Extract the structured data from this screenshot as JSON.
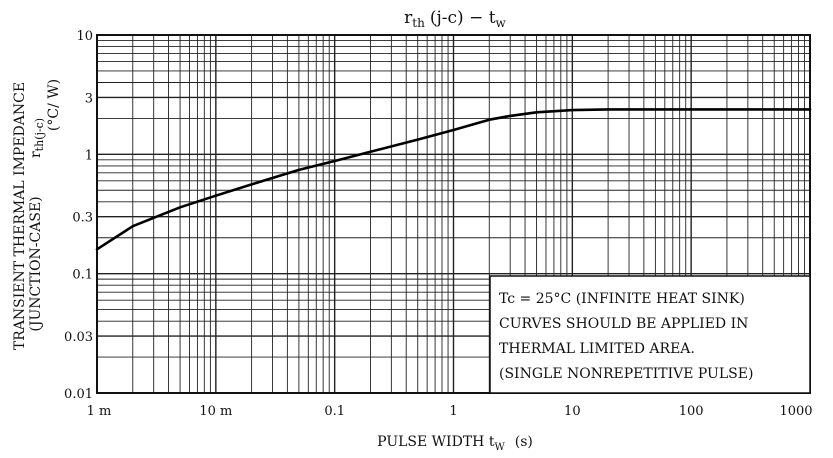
{
  "chart_data": {
    "type": "line",
    "title": "rth (j-c) − tw",
    "title_main": "r",
    "title_sub": "th",
    "title_rest": "(j-c) − t",
    "title_sub2": "w",
    "xlabel_main": "PULSE WIDTH  t",
    "xlabel_sub": "W",
    "xlabel_unit": "(s)",
    "ylabel_line1": "TRANSIENT THERMAL IMPEDANCE",
    "ylabel_line2": "(JUNCTION-CASE)",
    "ylabel_symbol": "r",
    "ylabel_symbol_sub": "th(j-c)",
    "ylabel_unit": "(°C/ W)",
    "x_scale": "log",
    "y_scale": "log",
    "xlim": [
      0.001,
      1000
    ],
    "ylim": [
      0.01,
      10
    ],
    "grid": true,
    "x_ticks": [
      {
        "value": 0.001,
        "label": "1 m"
      },
      {
        "value": 0.01,
        "label": "10 m"
      },
      {
        "value": 0.1,
        "label": "0.1"
      },
      {
        "value": 1,
        "label": "1"
      },
      {
        "value": 10,
        "label": "10"
      },
      {
        "value": 100,
        "label": "100"
      },
      {
        "value": 1000,
        "label": "1000"
      }
    ],
    "y_ticks": [
      {
        "value": 10,
        "label": "10"
      },
      {
        "value": 3,
        "label": "3"
      },
      {
        "value": 1,
        "label": "1"
      },
      {
        "value": 0.3,
        "label": "0.3"
      },
      {
        "value": 0.1,
        "label": "0.1"
      },
      {
        "value": 0.03,
        "label": "0.03"
      },
      {
        "value": 0.01,
        "label": "0.01"
      }
    ],
    "series": [
      {
        "x": [
          0.001,
          0.002,
          0.005,
          0.01,
          0.02,
          0.05,
          0.1,
          0.2,
          0.5,
          1,
          2,
          3,
          5,
          10,
          20,
          50,
          100,
          1000
        ],
        "y": [
          0.16,
          0.25,
          0.36,
          0.45,
          0.56,
          0.74,
          0.88,
          1.05,
          1.33,
          1.6,
          1.95,
          2.1,
          2.25,
          2.35,
          2.38,
          2.38,
          2.38,
          2.38
        ]
      }
    ],
    "annotation_lines": [
      "Tc = 25°C (INFINITE HEAT SINK)",
      "CURVES SHOULD BE APPLIED IN",
      "THERMAL LIMITED AREA.",
      "(SINGLE NONREPETITIVE PULSE)"
    ]
  }
}
